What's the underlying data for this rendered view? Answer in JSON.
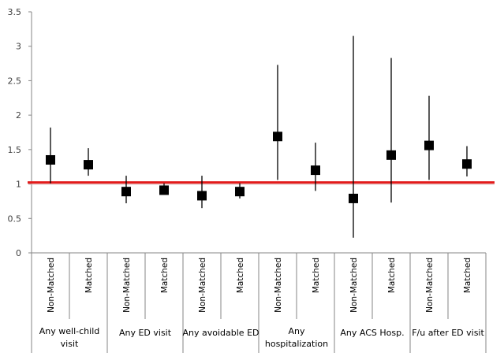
{
  "chart_data": {
    "type": "scatter",
    "subtype": "point-with-error-bars",
    "title": "",
    "xlabel": "",
    "ylabel": "",
    "ylim": [
      0,
      3.5
    ],
    "yticks": [
      "0",
      "0.5",
      "1",
      "1.5",
      "2",
      "2.5",
      "3",
      "3.5"
    ],
    "ytick_values": [
      0,
      0.5,
      1,
      1.5,
      2,
      2.5,
      3,
      3.5
    ],
    "grid": false,
    "legend": "none",
    "reference_line": {
      "value": 1,
      "color": "#e31b1b"
    },
    "marker_color": "#000000",
    "groups": [
      {
        "label": "Any well-child visit",
        "lines": [
          "Any well-child",
          "visit"
        ]
      },
      {
        "label": "Any ED visit",
        "lines": [
          "Any ED visit"
        ]
      },
      {
        "label": "Any avoidable ED",
        "lines": [
          "Any avoidable ED"
        ]
      },
      {
        "label": "Any hospitalization",
        "lines": [
          "Any",
          "hospitalization"
        ]
      },
      {
        "label": "Any ACS Hosp.",
        "lines": [
          "Any ACS Hosp."
        ]
      },
      {
        "label": "F/u after ED visit",
        "lines": [
          "F/u after ED visit"
        ]
      }
    ],
    "subcategories": [
      "Non-Matched",
      "Matched"
    ],
    "points": [
      {
        "group": "Any well-child visit",
        "category": "Non-Matched",
        "value": 1.35,
        "lower": 1.01,
        "upper": 1.82
      },
      {
        "group": "Any well-child visit",
        "category": "Matched",
        "value": 1.28,
        "lower": 1.12,
        "upper": 1.52
      },
      {
        "group": "Any ED visit",
        "category": "Non-Matched",
        "value": 0.89,
        "lower": 0.72,
        "upper": 1.12
      },
      {
        "group": "Any ED visit",
        "category": "Matched",
        "value": 0.91,
        "lower": 0.85,
        "upper": 1.01
      },
      {
        "group": "Any avoidable ED",
        "category": "Non-Matched",
        "value": 0.83,
        "lower": 0.65,
        "upper": 1.12
      },
      {
        "group": "Any avoidable ED",
        "category": "Matched",
        "value": 0.89,
        "lower": 0.79,
        "upper": 1.01
      },
      {
        "group": "Any hospitalization",
        "category": "Non-Matched",
        "value": 1.69,
        "lower": 1.06,
        "upper": 2.73
      },
      {
        "group": "Any hospitalization",
        "category": "Matched",
        "value": 1.2,
        "lower": 0.9,
        "upper": 1.6
      },
      {
        "group": "Any ACS Hosp.",
        "category": "Non-Matched",
        "value": 0.79,
        "lower": 0.22,
        "upper": 3.15
      },
      {
        "group": "Any ACS Hosp.",
        "category": "Matched",
        "value": 1.42,
        "lower": 0.73,
        "upper": 2.83
      },
      {
        "group": "F/u after ED visit",
        "category": "Non-Matched",
        "value": 1.56,
        "lower": 1.06,
        "upper": 2.28
      },
      {
        "group": "F/u after ED visit",
        "category": "Matched",
        "value": 1.29,
        "lower": 1.11,
        "upper": 1.55
      }
    ]
  }
}
